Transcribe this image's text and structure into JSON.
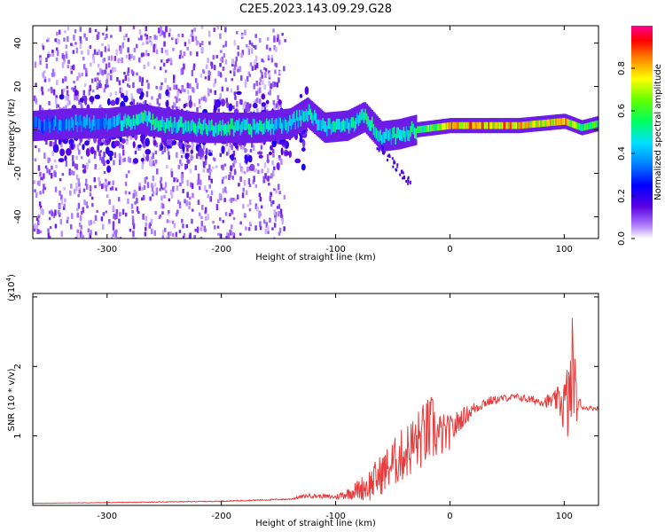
{
  "title": "C2E5.2023.143.09.29.G28",
  "colors": {
    "snr_line": "#e83a3a",
    "frame": "#000000"
  },
  "chart_data": [
    {
      "type": "heatmap",
      "xlabel": "Height of straight line (km)",
      "ylabel": "Frequency (Hz)",
      "xlim": [
        -365,
        130
      ],
      "ylim": [
        -50,
        48
      ],
      "xticks": [
        -300,
        -200,
        -100,
        0,
        100
      ],
      "yticks": [
        -40,
        -20,
        0,
        20,
        40
      ],
      "grid": false,
      "colorbar": {
        "label": "Normalized spectral amplitude",
        "range": [
          0,
          1
        ],
        "ticks": [
          0.0,
          0.2,
          0.4,
          0.6,
          0.8
        ],
        "colormap": "rainbow (violet-blue-cyan-green-yellow-red-magenta)"
      },
      "ridge": [
        {
          "x": -360,
          "f": 2,
          "amp": 0.35
        },
        {
          "x": -330,
          "f": 3,
          "amp": 0.4
        },
        {
          "x": -300,
          "f": 3,
          "amp": 0.4
        },
        {
          "x": -270,
          "f": 5,
          "amp": 0.55
        },
        {
          "x": -250,
          "f": 3,
          "amp": 0.5
        },
        {
          "x": -220,
          "f": 1,
          "amp": 0.5
        },
        {
          "x": -200,
          "f": 1,
          "amp": 0.55
        },
        {
          "x": -170,
          "f": 1,
          "amp": 0.5
        },
        {
          "x": -140,
          "f": 3,
          "amp": 0.45
        },
        {
          "x": -125,
          "f": 8,
          "amp": 0.5
        },
        {
          "x": -110,
          "f": 1,
          "amp": 0.5
        },
        {
          "x": -90,
          "f": 2,
          "amp": 0.5
        },
        {
          "x": -75,
          "f": 6,
          "amp": 0.55
        },
        {
          "x": -60,
          "f": -3,
          "amp": 0.5
        },
        {
          "x": -45,
          "f": -2,
          "amp": 0.5
        },
        {
          "x": -30,
          "f": 0,
          "amp": 0.55
        },
        {
          "x": -15,
          "f": 1,
          "amp": 0.7
        },
        {
          "x": 0,
          "f": 2,
          "amp": 0.85
        },
        {
          "x": 30,
          "f": 2,
          "amp": 0.9
        },
        {
          "x": 60,
          "f": 2,
          "amp": 0.8
        },
        {
          "x": 80,
          "f": 3,
          "amp": 0.75
        },
        {
          "x": 100,
          "f": 4,
          "amp": 0.85
        },
        {
          "x": 115,
          "f": 1,
          "amp": 0.6
        },
        {
          "x": 130,
          "f": 3,
          "amp": 0.6
        }
      ],
      "noise_region_x": [
        -365,
        -145
      ]
    },
    {
      "type": "line",
      "xlabel": "Height of straight line (km)",
      "ylabel": "SNR (10 * v/v)",
      "scale_label": "(x10",
      "scale_exp": "4",
      "scale_close": ")",
      "xlim": [
        -365,
        130
      ],
      "ylim": [
        0,
        30500
      ],
      "xticks": [
        -300,
        -200,
        -100,
        0,
        100
      ],
      "yticks": [
        1,
        2,
        3
      ],
      "ytick_scale": 10000,
      "grid": false,
      "series": [
        {
          "color": "#e83a3a",
          "x": [
            -365,
            -300,
            -200,
            -140,
            -125,
            -110,
            -100,
            -90,
            -80,
            -70,
            -60,
            -50,
            -40,
            -30,
            -20,
            -15,
            -10,
            0,
            10,
            20,
            30,
            40,
            50,
            60,
            70,
            80,
            90,
            95,
            100,
            105,
            108,
            110,
            115,
            120,
            130
          ],
          "values": [
            300,
            400,
            600,
            900,
            1400,
            1300,
            1200,
            1700,
            2300,
            3000,
            4500,
            6000,
            7500,
            9000,
            10500,
            11000,
            10000,
            10500,
            12500,
            13800,
            14800,
            15200,
            15500,
            15600,
            15200,
            15000,
            15000,
            15200,
            14500,
            15000,
            22000,
            15000,
            14200,
            14000,
            14000
          ],
          "jitter": [
            20,
            40,
            60,
            100,
            300,
            300,
            400,
            800,
            1500,
            2500,
            3000,
            3500,
            4000,
            4500,
            5000,
            5000,
            3500,
            2500,
            1500,
            1000,
            800,
            600,
            500,
            500,
            600,
            700,
            1200,
            2000,
            4500,
            7000,
            8000,
            4000,
            400,
            300,
            300
          ]
        }
      ]
    }
  ]
}
